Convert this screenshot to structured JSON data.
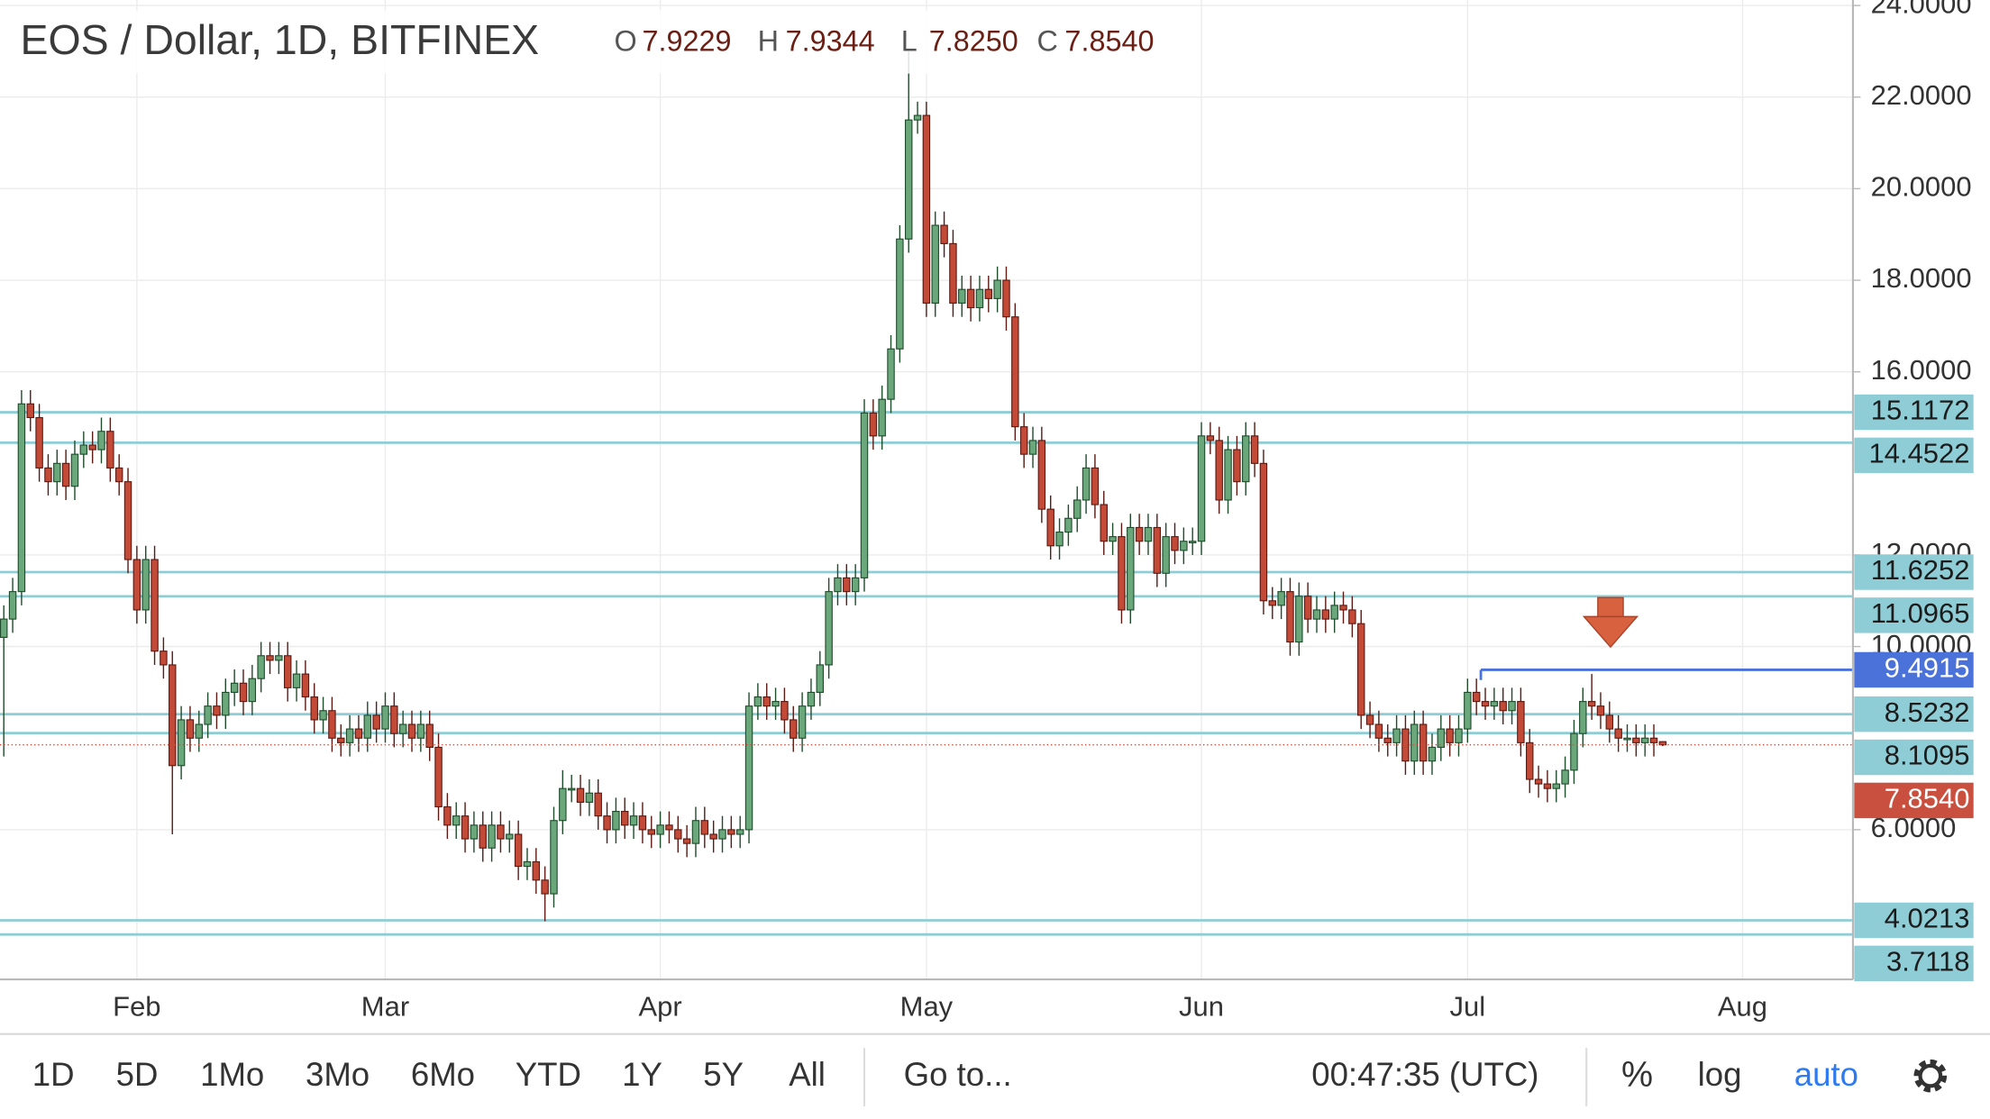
{
  "chart_data": {
    "type": "candlestick",
    "title": "EOS / Dollar, 1D, BITFINEX",
    "ohlc_keys": [
      "O",
      "H",
      "L",
      "C"
    ],
    "ohlc_labels": [
      "7.9229",
      "7.9344",
      "7.8250",
      "7.8540"
    ],
    "categories": [
      null,
      null,
      null,
      null,
      null,
      null,
      null,
      null,
      null,
      null,
      null,
      null,
      null,
      null,
      null,
      "Feb",
      null,
      null,
      null,
      null,
      null,
      null,
      null,
      null,
      null,
      null,
      null,
      null,
      null,
      null,
      null,
      null,
      null,
      null,
      null,
      null,
      null,
      null,
      null,
      null,
      null,
      null,
      null,
      "Mar",
      null,
      null,
      null,
      null,
      null,
      null,
      null,
      null,
      null,
      null,
      null,
      null,
      null,
      null,
      null,
      null,
      null,
      null,
      null,
      null,
      null,
      null,
      null,
      null,
      null,
      null,
      null,
      null,
      null,
      null,
      "Apr",
      null,
      null,
      null,
      null,
      null,
      null,
      null,
      null,
      null,
      null,
      null,
      null,
      null,
      null,
      null,
      null,
      null,
      null,
      null,
      null,
      null,
      null,
      null,
      null,
      null,
      null,
      null,
      null,
      null,
      "May",
      null,
      null,
      null,
      null,
      null,
      null,
      null,
      null,
      null,
      null,
      null,
      null,
      null,
      null,
      null,
      null,
      null,
      null,
      null,
      null,
      null,
      null,
      null,
      null,
      null,
      null,
      null,
      null,
      null,
      null,
      "Jun",
      null,
      null,
      null,
      null,
      null,
      null,
      null,
      null,
      null,
      null,
      null,
      null,
      null,
      null,
      null,
      null,
      null,
      null,
      null,
      null,
      null,
      null,
      null,
      null,
      null,
      null,
      null,
      null,
      null,
      "Jul",
      null,
      null,
      null,
      null,
      null,
      null,
      null,
      null,
      null,
      null,
      null,
      null,
      null,
      null,
      null,
      null,
      null,
      null,
      null,
      null,
      null,
      null,
      null,
      null,
      null,
      null,
      null,
      null,
      null,
      null,
      "Aug"
    ],
    "open": [
      10.2,
      10.6,
      11.2,
      15.3,
      15.0,
      13.9,
      13.6,
      14.0,
      13.5,
      14.2,
      14.4,
      14.3,
      14.7,
      13.9,
      13.6,
      11.9,
      10.8,
      11.9,
      9.9,
      9.6,
      7.4,
      8.4,
      8.0,
      8.3,
      8.7,
      8.5,
      9.0,
      9.2,
      8.8,
      9.3,
      9.8,
      9.7,
      9.8,
      9.1,
      9.4,
      8.9,
      8.4,
      8.6,
      8.0,
      7.9,
      8.2,
      8.0,
      8.5,
      8.2,
      8.7,
      8.1,
      8.3,
      8.0,
      8.3,
      7.8,
      6.5,
      6.1,
      6.3,
      5.8,
      6.1,
      5.6,
      6.1,
      5.8,
      5.9,
      5.2,
      5.3,
      4.9,
      4.6,
      6.2,
      6.9,
      6.9,
      6.6,
      6.8,
      6.3,
      6.0,
      6.4,
      6.1,
      6.3,
      6.0,
      5.9,
      6.1,
      6.0,
      5.8,
      5.7,
      6.2,
      5.9,
      5.8,
      6.0,
      5.9,
      6.0,
      8.7,
      8.9,
      8.7,
      8.8,
      8.4,
      8.0,
      8.7,
      9.0,
      9.6,
      11.2,
      11.5,
      11.2,
      11.5,
      15.1,
      14.6,
      15.4,
      16.5,
      18.9,
      21.5,
      21.6,
      17.5,
      19.2,
      18.8,
      17.5,
      17.8,
      17.4,
      17.8,
      17.6,
      18.0,
      17.2,
      14.8,
      14.2,
      14.5,
      13.0,
      12.2,
      12.5,
      12.8,
      13.2,
      13.9,
      13.1,
      12.3,
      12.4,
      10.8,
      12.6,
      12.3,
      12.6,
      11.6,
      12.4,
      12.1,
      12.3,
      12.3,
      14.6,
      14.5,
      13.2,
      14.3,
      13.6,
      14.6,
      14.0,
      11.0,
      10.9,
      11.2,
      10.1,
      11.1,
      10.6,
      10.8,
      10.6,
      10.9,
      10.8,
      10.5,
      8.5,
      8.3,
      8.0,
      7.9,
      8.2,
      7.5,
      8.3,
      7.5,
      7.8,
      8.2,
      7.9,
      8.2,
      9.0,
      8.8,
      8.7,
      8.8,
      8.6,
      8.8,
      7.9,
      7.1,
      7.0,
      6.9,
      7.0,
      7.3,
      8.1,
      8.8,
      8.7,
      8.5,
      8.2,
      8.0,
      8.0,
      7.9,
      8.0,
      7.9229,
      null,
      null,
      null,
      null,
      null,
      null,
      null,
      null,
      null
    ],
    "high": [
      10.9,
      11.5,
      15.6,
      15.6,
      15.3,
      14.2,
      14.3,
      14.3,
      14.5,
      14.7,
      14.7,
      15.0,
      15.0,
      14.2,
      13.9,
      12.2,
      12.2,
      12.2,
      10.2,
      9.9,
      8.7,
      8.7,
      8.6,
      9.0,
      9.0,
      9.3,
      9.5,
      9.5,
      9.6,
      10.1,
      10.1,
      10.1,
      10.1,
      9.7,
      9.7,
      9.2,
      8.9,
      8.9,
      8.3,
      8.5,
      8.5,
      8.8,
      8.8,
      9.0,
      9.0,
      8.6,
      8.6,
      8.6,
      8.6,
      8.1,
      6.8,
      6.6,
      6.6,
      6.4,
      6.4,
      6.4,
      6.4,
      6.2,
      6.2,
      5.6,
      5.6,
      5.2,
      6.5,
      7.3,
      7.2,
      7.2,
      7.1,
      7.1,
      6.6,
      6.7,
      6.7,
      6.6,
      6.6,
      6.3,
      6.4,
      6.4,
      6.3,
      6.1,
      6.5,
      6.5,
      6.2,
      6.3,
      6.3,
      6.3,
      9.0,
      9.2,
      9.2,
      9.1,
      9.1,
      8.7,
      9.0,
      9.3,
      9.9,
      11.5,
      11.8,
      11.8,
      11.8,
      15.4,
      15.4,
      15.7,
      16.8,
      19.2,
      23.0,
      21.9,
      21.9,
      19.5,
      19.5,
      19.1,
      18.1,
      18.1,
      18.1,
      18.1,
      18.3,
      18.3,
      17.5,
      15.1,
      14.8,
      14.8,
      13.3,
      12.8,
      13.1,
      13.5,
      14.2,
      14.2,
      13.4,
      12.7,
      12.7,
      12.9,
      12.9,
      12.9,
      12.9,
      12.7,
      12.7,
      12.6,
      12.6,
      14.9,
      14.9,
      14.8,
      14.6,
      14.6,
      14.9,
      14.9,
      14.3,
      11.3,
      11.5,
      11.5,
      11.4,
      11.4,
      11.1,
      11.1,
      11.2,
      11.2,
      11.1,
      10.8,
      8.8,
      8.6,
      8.3,
      8.5,
      8.5,
      8.6,
      8.6,
      8.1,
      8.5,
      8.5,
      8.5,
      9.3,
      9.3,
      9.1,
      9.1,
      9.1,
      9.1,
      9.1,
      8.2,
      7.4,
      7.3,
      7.3,
      7.6,
      8.4,
      9.1,
      9.4,
      9.0,
      8.8,
      8.5,
      8.3,
      8.3,
      8.3,
      8.3,
      7.9344,
      null,
      null,
      null,
      null,
      null,
      null,
      null,
      null,
      null
    ],
    "low": [
      7.6,
      10.3,
      10.9,
      14.7,
      13.6,
      13.3,
      13.3,
      13.2,
      13.2,
      13.9,
      14.0,
      14.0,
      13.6,
      13.3,
      11.6,
      10.5,
      10.5,
      9.6,
      9.3,
      5.9,
      7.1,
      7.7,
      7.7,
      8.0,
      8.2,
      8.2,
      8.7,
      8.5,
      8.5,
      9.0,
      9.4,
      9.4,
      8.8,
      8.8,
      8.6,
      8.1,
      8.1,
      7.7,
      7.6,
      7.6,
      7.7,
      7.7,
      7.9,
      7.9,
      7.8,
      7.8,
      7.7,
      7.7,
      7.5,
      6.2,
      5.8,
      5.8,
      5.5,
      5.5,
      5.3,
      5.3,
      5.5,
      5.5,
      4.9,
      4.9,
      4.6,
      4.0,
      4.3,
      5.9,
      6.6,
      6.3,
      6.3,
      6.0,
      5.7,
      5.7,
      5.8,
      5.8,
      5.7,
      5.6,
      5.6,
      5.7,
      5.5,
      5.4,
      5.4,
      5.6,
      5.5,
      5.5,
      5.6,
      5.6,
      5.7,
      8.4,
      8.4,
      8.4,
      8.1,
      7.7,
      7.7,
      8.4,
      8.7,
      9.3,
      10.9,
      10.9,
      10.9,
      11.2,
      14.3,
      14.3,
      15.1,
      16.2,
      18.6,
      21.2,
      17.2,
      17.2,
      18.5,
      17.2,
      17.2,
      17.1,
      17.1,
      17.3,
      17.3,
      16.9,
      14.5,
      13.9,
      13.9,
      12.7,
      11.9,
      11.9,
      12.2,
      12.5,
      12.9,
      12.8,
      12.0,
      12.0,
      10.5,
      10.5,
      12.0,
      12.0,
      11.3,
      11.3,
      11.8,
      11.8,
      12.0,
      12.0,
      14.2,
      12.9,
      12.9,
      13.3,
      13.3,
      13.7,
      10.7,
      10.6,
      10.6,
      9.8,
      9.8,
      10.3,
      10.3,
      10.3,
      10.3,
      10.5,
      10.2,
      8.2,
      8.0,
      7.7,
      7.6,
      7.6,
      7.2,
      7.2,
      7.2,
      7.2,
      7.5,
      7.6,
      7.6,
      7.9,
      8.5,
      8.4,
      8.4,
      8.3,
      8.3,
      7.6,
      6.8,
      6.7,
      6.6,
      6.6,
      6.7,
      7.0,
      7.8,
      8.4,
      8.2,
      7.9,
      7.7,
      7.7,
      7.6,
      7.6,
      7.6,
      7.825,
      null,
      null,
      null,
      null,
      null,
      null,
      null,
      null,
      null
    ],
    "close": [
      10.6,
      11.2,
      15.3,
      15.0,
      13.9,
      13.6,
      14.0,
      13.5,
      14.2,
      14.4,
      14.3,
      14.7,
      13.9,
      13.6,
      11.9,
      10.8,
      11.9,
      9.9,
      9.6,
      7.4,
      8.4,
      8.0,
      8.3,
      8.7,
      8.5,
      9.0,
      9.2,
      8.8,
      9.3,
      9.8,
      9.7,
      9.8,
      9.1,
      9.4,
      8.9,
      8.4,
      8.6,
      8.0,
      7.9,
      8.2,
      8.0,
      8.5,
      8.2,
      8.7,
      8.1,
      8.3,
      8.0,
      8.3,
      7.8,
      6.5,
      6.1,
      6.3,
      5.8,
      6.1,
      5.6,
      6.1,
      5.8,
      5.9,
      5.2,
      5.3,
      4.9,
      4.6,
      6.2,
      6.9,
      6.9,
      6.6,
      6.8,
      6.3,
      6.0,
      6.4,
      6.1,
      6.3,
      6.0,
      5.9,
      6.1,
      6.0,
      5.8,
      5.7,
      6.2,
      5.9,
      5.8,
      6.0,
      5.9,
      6.0,
      8.7,
      8.9,
      8.7,
      8.8,
      8.4,
      8.0,
      8.7,
      9.0,
      9.6,
      11.2,
      11.5,
      11.2,
      11.5,
      15.1,
      14.6,
      15.4,
      16.5,
      18.9,
      21.5,
      21.6,
      17.5,
      19.2,
      18.8,
      17.5,
      17.8,
      17.4,
      17.8,
      17.6,
      18.0,
      17.2,
      14.8,
      14.2,
      14.5,
      13.0,
      12.2,
      12.5,
      12.8,
      13.2,
      13.9,
      13.1,
      12.3,
      12.4,
      10.8,
      12.6,
      12.3,
      12.6,
      11.6,
      12.4,
      12.1,
      12.3,
      12.3,
      14.6,
      14.5,
      13.2,
      14.3,
      13.6,
      14.6,
      14.0,
      11.0,
      10.9,
      11.2,
      10.1,
      11.1,
      10.6,
      10.8,
      10.6,
      10.9,
      10.8,
      10.5,
      8.5,
      8.3,
      8.0,
      7.9,
      8.2,
      7.5,
      8.3,
      7.5,
      7.8,
      8.2,
      7.9,
      8.2,
      9.0,
      8.8,
      8.7,
      8.8,
      8.6,
      8.8,
      7.9,
      7.1,
      7.0,
      6.9,
      7.0,
      7.3,
      8.1,
      8.8,
      8.7,
      8.5,
      8.2,
      8.0,
      8.0,
      7.9,
      8.0,
      7.9,
      7.854,
      null,
      null,
      null,
      null,
      null,
      null,
      null,
      null,
      null
    ],
    "up_color": "#6aa77a",
    "down_color": "#c44a38",
    "ylim": [
      2.73,
      24.12
    ],
    "yticks": [
      {
        "value": 6,
        "label": "6.0000"
      },
      {
        "value": 10,
        "label": "10.0000"
      },
      {
        "value": 12,
        "label": "12.0000"
      },
      {
        "value": 16,
        "label": "16.0000"
      },
      {
        "value": 18,
        "label": "18.0000"
      },
      {
        "value": 20,
        "label": "20.0000"
      },
      {
        "value": 22,
        "label": "22.0000"
      },
      {
        "value": 24,
        "label": "24.0000"
      }
    ],
    "grid": true,
    "levels": [
      15.1172,
      14.4522,
      11.6252,
      11.0965,
      8.5232,
      8.1095,
      4.0213,
      3.7118
    ],
    "level_color": "#8fcdd6",
    "resistance": 9.4915,
    "resistance_color": "#4a72d9",
    "last_price_color": "#c9503f"
  },
  "toolbar": {
    "ranges": [
      "1D",
      "5D",
      "1Mo",
      "3Mo",
      "6Mo",
      "YTD",
      "1Y",
      "5Y",
      "All"
    ],
    "goto": "Go to...",
    "clock": "00:47:35 (UTC)",
    "percent": "%",
    "log": "log",
    "auto": "auto"
  }
}
